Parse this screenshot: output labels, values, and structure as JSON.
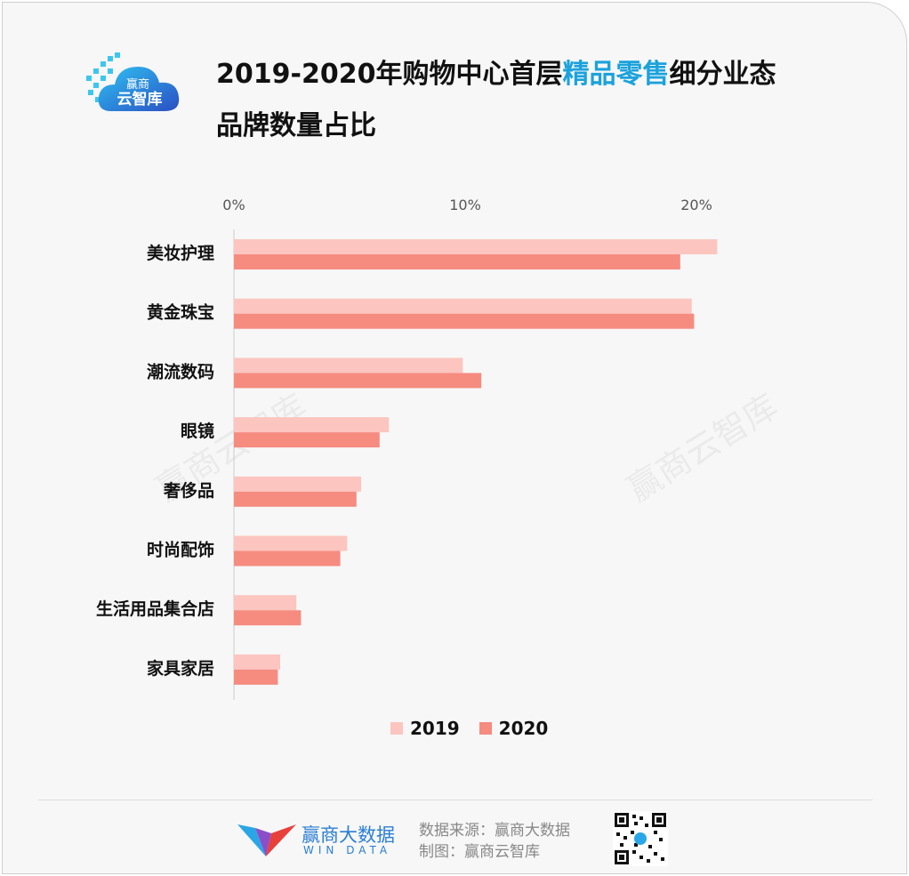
{
  "header": {
    "title_prefix": "2019-2020年购物中心首层",
    "title_highlight": "精品零售",
    "title_suffix": "细分业态",
    "title_line2": "品牌数量占比",
    "logo_text_top": "赢商",
    "logo_text_bottom": "云智库"
  },
  "chart_data": {
    "type": "bar",
    "orientation": "horizontal",
    "categories": [
      "美妆护理",
      "黄金珠宝",
      "潮流数码",
      "眼镜",
      "奢侈品",
      "时尚配饰",
      "生活用品集合店",
      "家具家居"
    ],
    "series": [
      {
        "name": "2019",
        "color": "#fcc5c0",
        "values": [
          20.9,
          19.8,
          9.9,
          6.7,
          5.5,
          4.9,
          2.7,
          2.0
        ]
      },
      {
        "name": "2020",
        "color": "#f68b80",
        "values": [
          19.3,
          19.9,
          10.7,
          6.3,
          5.3,
          4.6,
          2.9,
          1.9
        ]
      }
    ],
    "xticks": [
      "0%",
      "10%",
      "20%"
    ],
    "tick_values": [
      0,
      10,
      20
    ],
    "xlim": [
      0,
      20
    ],
    "axis_position": "top",
    "legend_position": "bottom",
    "grid": false
  },
  "legend": [
    {
      "label": "2019",
      "color": "#fcc5c0"
    },
    {
      "label": "2020",
      "color": "#f68b80"
    }
  ],
  "watermark": "赢商云智库",
  "footer": {
    "brand_name": "赢商大数据",
    "brand_sub": "WIN DATA",
    "source_line": "数据来源：赢商大数据",
    "made_by_line": "制图：赢商云智库"
  }
}
